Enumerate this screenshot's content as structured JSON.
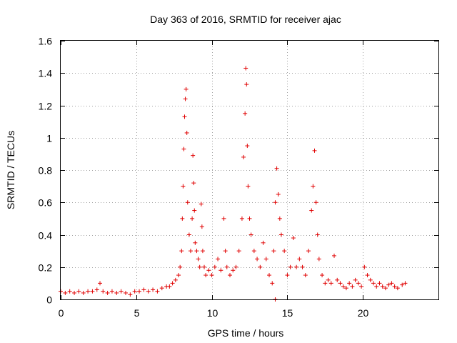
{
  "chart_data": {
    "type": "scatter",
    "title": "Day 363 of 2016, SRMTID for receiver ajac",
    "xlabel": "GPS time / hours",
    "ylabel": "SRMTID / TECUs",
    "xlim": [
      0,
      25
    ],
    "ylim": [
      0,
      1.6
    ],
    "xticks": [
      0,
      5,
      10,
      15,
      20
    ],
    "xtick_labels": [
      "0",
      "5",
      "10",
      "15",
      "20"
    ],
    "yticks": [
      0,
      0.2,
      0.4,
      0.6,
      0.8,
      1,
      1.2,
      1.4,
      1.6
    ],
    "ytick_labels": [
      "0",
      "0.2",
      "0.4",
      "0.6",
      "0.8",
      "1",
      "1.2",
      "1.4",
      "1.6"
    ],
    "grid": true,
    "marker": "+",
    "series": [
      {
        "name": "SRMTID",
        "color": "#e00000",
        "x": [
          0.0,
          0.3,
          0.6,
          0.9,
          1.2,
          1.5,
          1.8,
          2.1,
          2.4,
          2.6,
          2.8,
          3.1,
          3.4,
          3.7,
          4.0,
          4.3,
          4.6,
          4.9,
          5.2,
          5.5,
          5.8,
          6.1,
          6.4,
          6.7,
          7.0,
          7.2,
          7.4,
          7.6,
          7.8,
          7.9,
          8.0,
          8.05,
          8.1,
          8.15,
          8.2,
          8.25,
          8.3,
          8.35,
          8.4,
          8.5,
          8.6,
          8.7,
          8.75,
          8.8,
          8.85,
          8.9,
          9.0,
          9.1,
          9.2,
          9.3,
          9.35,
          9.4,
          9.5,
          9.6,
          9.8,
          10.0,
          10.2,
          10.4,
          10.6,
          10.8,
          10.9,
          11.0,
          11.2,
          11.4,
          11.6,
          11.8,
          12.0,
          12.1,
          12.2,
          12.25,
          12.3,
          12.35,
          12.4,
          12.5,
          12.6,
          12.8,
          13.0,
          13.2,
          13.4,
          13.6,
          13.8,
          14.0,
          14.1,
          14.2,
          14.3,
          14.4,
          14.5,
          14.6,
          14.8,
          15.0,
          15.2,
          15.4,
          15.6,
          15.8,
          16.0,
          16.2,
          16.4,
          16.6,
          16.7,
          16.8,
          16.9,
          17.0,
          17.1,
          17.3,
          17.5,
          17.7,
          17.9,
          18.1,
          18.3,
          18.5,
          18.7,
          18.9,
          19.1,
          19.3,
          19.5,
          19.7,
          19.9,
          20.1,
          20.3,
          20.5,
          20.7,
          20.9,
          21.1,
          21.3,
          21.5,
          21.7,
          21.9,
          22.1,
          22.3,
          22.6,
          22.8
        ],
        "y": [
          0.05,
          0.04,
          0.05,
          0.04,
          0.05,
          0.04,
          0.05,
          0.05,
          0.06,
          0.1,
          0.05,
          0.04,
          0.05,
          0.04,
          0.05,
          0.04,
          0.03,
          0.05,
          0.05,
          0.06,
          0.05,
          0.06,
          0.05,
          0.07,
          0.08,
          0.08,
          0.1,
          0.12,
          0.15,
          0.2,
          0.3,
          0.5,
          0.7,
          0.93,
          1.13,
          1.24,
          1.3,
          1.03,
          0.6,
          0.4,
          0.3,
          0.5,
          0.89,
          0.72,
          0.55,
          0.35,
          0.3,
          0.25,
          0.2,
          0.59,
          0.45,
          0.3,
          0.2,
          0.15,
          0.18,
          0.15,
          0.2,
          0.25,
          0.18,
          0.5,
          0.3,
          0.2,
          0.15,
          0.18,
          0.2,
          0.3,
          0.5,
          0.88,
          1.15,
          1.43,
          1.33,
          0.95,
          0.7,
          0.5,
          0.4,
          0.3,
          0.25,
          0.2,
          0.35,
          0.25,
          0.15,
          0.1,
          0.3,
          0.6,
          0.81,
          0.65,
          0.5,
          0.4,
          0.3,
          0.15,
          0.2,
          0.38,
          0.2,
          0.25,
          0.2,
          0.15,
          0.3,
          0.55,
          0.7,
          0.92,
          0.6,
          0.4,
          0.25,
          0.15,
          0.1,
          0.12,
          0.1,
          0.27,
          0.12,
          0.1,
          0.08,
          0.07,
          0.1,
          0.08,
          0.12,
          0.1,
          0.08,
          0.2,
          0.15,
          0.12,
          0.1,
          0.08,
          0.1,
          0.08,
          0.07,
          0.09,
          0.1,
          0.08,
          0.07,
          0.09,
          0.1
        ]
      }
    ],
    "outliers": {
      "x": [
        14.2
      ],
      "y": [
        0.0
      ]
    }
  }
}
